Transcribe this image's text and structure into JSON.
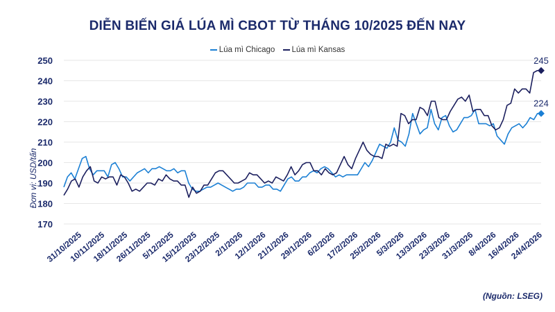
{
  "chart_data": {
    "type": "line",
    "title": "DIỄN BIẾN GIÁ LÚA MÌ CBOT TỪ THÁNG 10/2025 ĐẾN NAY",
    "ylabel": "Đơn vị: USD/tấn",
    "source": "(Nguồn: LSEG)",
    "ylim": [
      170,
      250
    ],
    "yticks": [
      170,
      180,
      190,
      200,
      210,
      220,
      230,
      240,
      250
    ],
    "grid": true,
    "legend_position": "top",
    "x_tick_labels": [
      "31/10/2025",
      "10/11/2025",
      "18/11/2025",
      "26/11/2025",
      "5/12/2025",
      "15/12/2025",
      "23/12/2025",
      "2/1/2026",
      "12/1/2026",
      "21/1/2026",
      "29/1/2026",
      "6/2/2026",
      "17/2/2026",
      "25/2/2026",
      "5/3/2026",
      "13/3/2026",
      "23/3/2026",
      "31/3/2026",
      "8/4/2026",
      "16/4/2026",
      "24/4/2026"
    ],
    "series": [
      {
        "name": "Lúa mì Chicago",
        "color": "#1a7fd4",
        "end_label": "224",
        "values": [
          188,
          193,
          195,
          192,
          197,
          202,
          203,
          197,
          194,
          196,
          196,
          196,
          193,
          199,
          200,
          197,
          193,
          193,
          191,
          193,
          195,
          196,
          197,
          195,
          197,
          197,
          198,
          197,
          196,
          196,
          197,
          195,
          196,
          196,
          190,
          187,
          186,
          186,
          187,
          188,
          188,
          189,
          190,
          189,
          188,
          187,
          186,
          187,
          187,
          188,
          190,
          190,
          190,
          188,
          188,
          189,
          189,
          187,
          187,
          186,
          189,
          192,
          193,
          191,
          191,
          193,
          193,
          195,
          196,
          195,
          197,
          198,
          197,
          195,
          193,
          194,
          193,
          194,
          194,
          194,
          194,
          197,
          200,
          198,
          201,
          205,
          209,
          208,
          207,
          210,
          217,
          211,
          210,
          208,
          214,
          224,
          219,
          214,
          216,
          217,
          226,
          219,
          216,
          222,
          223,
          218,
          215,
          216,
          219,
          222,
          222,
          223,
          226,
          219,
          219,
          219,
          218,
          219,
          213,
          211,
          209,
          214,
          217,
          218,
          219,
          217,
          219,
          222,
          221,
          224,
          224
        ]
      },
      {
        "name": "Lúa mì Kansas",
        "color": "#1b1f5e",
        "end_label": "245",
        "values": [
          184,
          187,
          191,
          192,
          188,
          193,
          196,
          198,
          191,
          190,
          193,
          192,
          193,
          193,
          189,
          194,
          193,
          190,
          186,
          187,
          186,
          188,
          190,
          190,
          189,
          192,
          191,
          194,
          192,
          191,
          191,
          189,
          189,
          183,
          188,
          185,
          186,
          189,
          189,
          192,
          195,
          196,
          196,
          194,
          192,
          190,
          190,
          191,
          192,
          195,
          194,
          194,
          192,
          190,
          191,
          190,
          193,
          192,
          191,
          194,
          198,
          194,
          196,
          199,
          200,
          200,
          196,
          196,
          194,
          197,
          195,
          194,
          195,
          199,
          203,
          199,
          197,
          202,
          206,
          210,
          206,
          204,
          203,
          203,
          202,
          209,
          208,
          209,
          208,
          224,
          223,
          219,
          221,
          221,
          227,
          226,
          223,
          230,
          230,
          222,
          221,
          221,
          225,
          228,
          231,
          232,
          230,
          233,
          225,
          226,
          226,
          223,
          223,
          218,
          216,
          217,
          221,
          228,
          229,
          236,
          234,
          236,
          236,
          234,
          244,
          245,
          245
        ]
      }
    ]
  }
}
